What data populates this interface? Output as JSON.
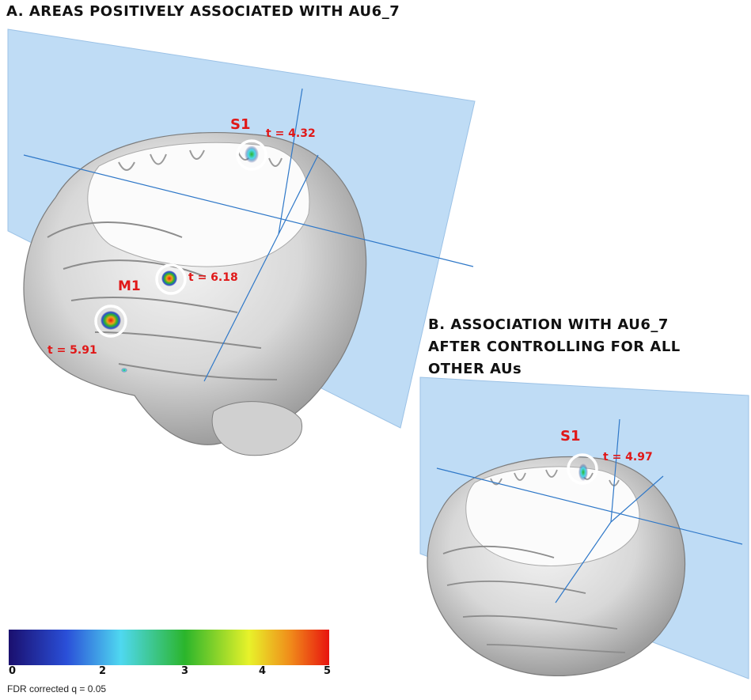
{
  "panel_a": {
    "title": "A. AREAS POSITIVELY ASSOCIATED WITH AU6_7",
    "labels": {
      "s1": "S1",
      "s1_t": "t = 4.32",
      "m1": "M1",
      "mid_t": "t = 6.18",
      "low_t": "t = 5.91"
    }
  },
  "panel_b": {
    "title_lines": [
      "B. ASSOCIATION WITH AU6_7",
      "AFTER CONTROLLING FOR ALL",
      "OTHER AUs"
    ],
    "labels": {
      "s1": "S1",
      "s1_t": "t = 4.97"
    }
  },
  "colorbar": {
    "ticks": [
      "0",
      "2",
      "3",
      "4",
      "5"
    ],
    "caption": "FDR corrected q = 0.05",
    "colors": [
      "#1a0f6e",
      "#2a4fd8",
      "#4fd8f0",
      "#2bb52b",
      "#e8f22a",
      "#f08a1a",
      "#e8140f"
    ]
  },
  "colors": {
    "plane": "#bfdcf5",
    "crosshair": "#2f78c8",
    "label_red": "#e01818",
    "highlight_ring": "#ffffff"
  }
}
